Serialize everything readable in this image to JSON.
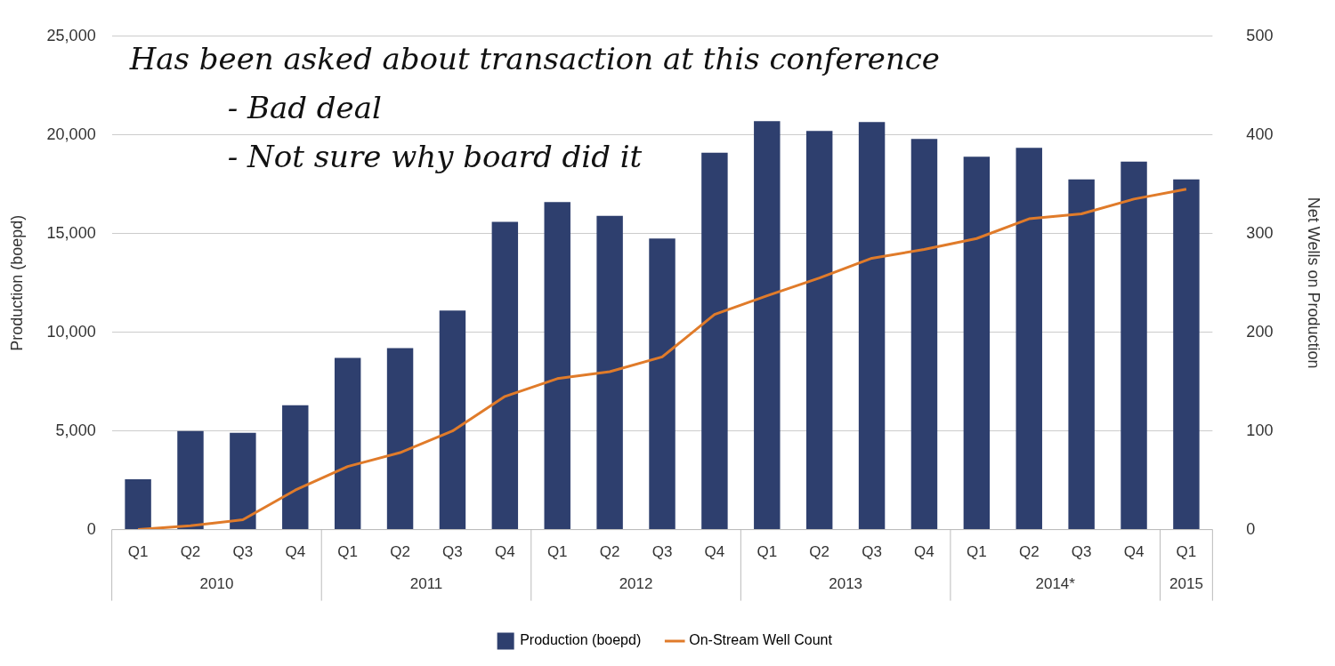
{
  "chart_data": {
    "type": "bar",
    "categories": [
      "Q1",
      "Q2",
      "Q3",
      "Q4",
      "Q1",
      "Q2",
      "Q3",
      "Q4",
      "Q1",
      "Q2",
      "Q3",
      "Q4",
      "Q1",
      "Q2",
      "Q3",
      "Q4",
      "Q1",
      "Q2",
      "Q3",
      "Q4",
      "Q1"
    ],
    "series": [
      {
        "name": "Production (boepd)",
        "color": "#2e3f6e",
        "values": [
          2550,
          5000,
          4900,
          6300,
          8700,
          9200,
          11100,
          15600,
          16600,
          15900,
          14750,
          19100,
          20700,
          20200,
          20650,
          19800,
          18900,
          19350,
          17750,
          18650,
          17750
        ]
      },
      {
        "name": "On-Stream Well Count",
        "type": "line",
        "axis": "y2",
        "color": "#e07b2a",
        "values": [
          0,
          4,
          10,
          40,
          64,
          78,
          100,
          135,
          153,
          160,
          175,
          218,
          237,
          255,
          275,
          284,
          295,
          315,
          320,
          335,
          345
        ]
      }
    ],
    "ylabel": "Production (boepd)",
    "y2label": "Net Wells on Production",
    "ylim": [
      0,
      25000
    ],
    "yticks": [
      {
        "value": 0,
        "label": "0"
      },
      {
        "value": 5000,
        "label": "5,000"
      },
      {
        "value": 10000,
        "label": "10,000"
      },
      {
        "value": 15000,
        "label": "15,000"
      },
      {
        "value": 20000,
        "label": "20,000"
      },
      {
        "value": 25000,
        "label": "25,000"
      }
    ],
    "y2lim": [
      0,
      500
    ],
    "y2ticks": [
      0,
      100,
      200,
      300,
      400,
      500
    ],
    "annotations": [
      "2010",
      "2011",
      "2012",
      "2013",
      "2014*",
      "2015",
      "Has been asked about transaction at this conference",
      "- Bad deal",
      "- Not sure why board did it"
    ],
    "grid": "y",
    "legend": "bottom",
    "marker": "none",
    "line_style": "solid"
  }
}
